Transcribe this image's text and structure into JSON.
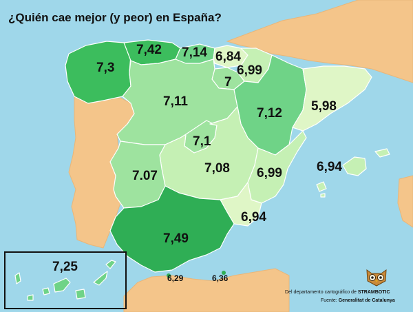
{
  "title": "¿Quién cae mejor (y peor) en España?",
  "credit": {
    "line1_prefix": "Del departamento cartográfico de",
    "line1_brand": "STRAMBOTIC",
    "line2_prefix": "Fuente:",
    "line2_source": "Generalitat de Catalunya"
  },
  "colors": {
    "sea": "#9fd7ea",
    "other_land": "#f4c58a",
    "high": "#2fae55",
    "mid_high": "#5fcf7a",
    "mid": "#9ee39f",
    "low": "#c5f0b4",
    "lowest": "#dff6c6"
  },
  "regions": [
    {
      "name": "Galicia",
      "value": "7,3"
    },
    {
      "name": "Asturias",
      "value": "7,42"
    },
    {
      "name": "Cantabria",
      "value": "7,14"
    },
    {
      "name": "País Vasco",
      "value": "6,84"
    },
    {
      "name": "Navarra",
      "value": "6,99"
    },
    {
      "name": "La Rioja",
      "value": "7"
    },
    {
      "name": "Castilla y León",
      "value": "7,11"
    },
    {
      "name": "Aragón",
      "value": "7,12"
    },
    {
      "name": "Cataluña",
      "value": "5,98"
    },
    {
      "name": "Madrid",
      "value": "7,1"
    },
    {
      "name": "Extremadura",
      "value": "7.07"
    },
    {
      "name": "Castilla-La Mancha",
      "value": "7,08"
    },
    {
      "name": "Comunidad Valenciana",
      "value": "6,99"
    },
    {
      "name": "Islas Baleares",
      "value": "6,94"
    },
    {
      "name": "Murcia",
      "value": "6,94"
    },
    {
      "name": "Andalucía",
      "value": "7,49"
    },
    {
      "name": "Canarias",
      "value": "7,25"
    },
    {
      "name": "Ceuta",
      "value": "6,29"
    },
    {
      "name": "Melilla",
      "value": "6,36"
    }
  ]
}
